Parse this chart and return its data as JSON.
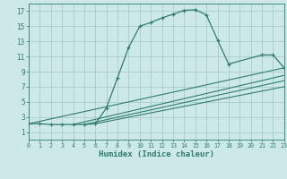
{
  "xlabel": "Humidex (Indice chaleur)",
  "bg_color": "#cde8e8",
  "grid_color": "#a0c8c8",
  "line_color": "#2e7d6e",
  "xlim": [
    0,
    23
  ],
  "ylim": [
    0,
    18
  ],
  "xticks": [
    0,
    1,
    2,
    3,
    4,
    5,
    6,
    7,
    8,
    9,
    10,
    11,
    12,
    13,
    14,
    15,
    16,
    17,
    18,
    19,
    20,
    21,
    22,
    23
  ],
  "yticks": [
    1,
    3,
    5,
    7,
    9,
    11,
    13,
    15,
    17
  ],
  "main_x": [
    0,
    1,
    2,
    3,
    4,
    5,
    6,
    7,
    8,
    9,
    10,
    11,
    12,
    13,
    14,
    15,
    16,
    17,
    18,
    21,
    22,
    23
  ],
  "main_y": [
    2.1,
    2.1,
    2.0,
    2.0,
    2.0,
    2.0,
    2.1,
    4.2,
    8.2,
    12.2,
    15.0,
    15.5,
    16.1,
    16.6,
    17.1,
    17.2,
    16.5,
    13.2,
    10.0,
    11.2,
    11.2,
    9.5
  ],
  "line1_x": [
    0,
    23
  ],
  "line1_y": [
    2.1,
    9.5
  ],
  "line2_x": [
    4,
    23
  ],
  "line2_y": [
    2.0,
    8.5
  ],
  "line3_x": [
    5,
    23
  ],
  "line3_y": [
    2.0,
    7.8
  ],
  "line4_x": [
    6,
    23
  ],
  "line4_y": [
    2.1,
    7.0
  ]
}
